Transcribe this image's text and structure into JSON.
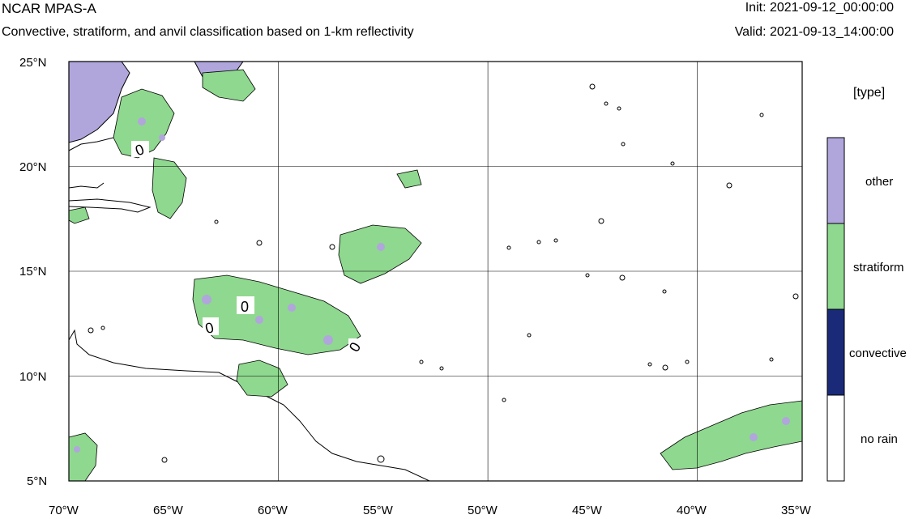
{
  "header": {
    "title": "NCAR MPAS-A",
    "subtitle": "Convective, stratiform, and anvil classification based on 1-km reflectivity",
    "init": "Init: 2021-09-12_00:00:00",
    "valid": "Valid: 2021-09-13_14:00:00"
  },
  "map": {
    "lon_range": [
      -70,
      -35
    ],
    "lat_range": [
      5,
      25
    ],
    "lon_labels": [
      "70°W",
      "65°W",
      "60°W",
      "55°W",
      "50°W",
      "45°W",
      "40°W",
      "35°W"
    ],
    "lat_labels": [
      "25°N",
      "20°N",
      "15°N",
      "10°N",
      "5°N"
    ],
    "contour_labels": [
      "0",
      "0",
      "0",
      "0"
    ]
  },
  "legend": {
    "title": "[type]",
    "entries": [
      {
        "label": "other",
        "color": "#b0a6dc"
      },
      {
        "label": "stratiform",
        "color": "#8fd88f"
      },
      {
        "label": "convective",
        "color": "#1a2a78"
      },
      {
        "label": "no rain",
        "color": "#ffffff"
      }
    ]
  }
}
